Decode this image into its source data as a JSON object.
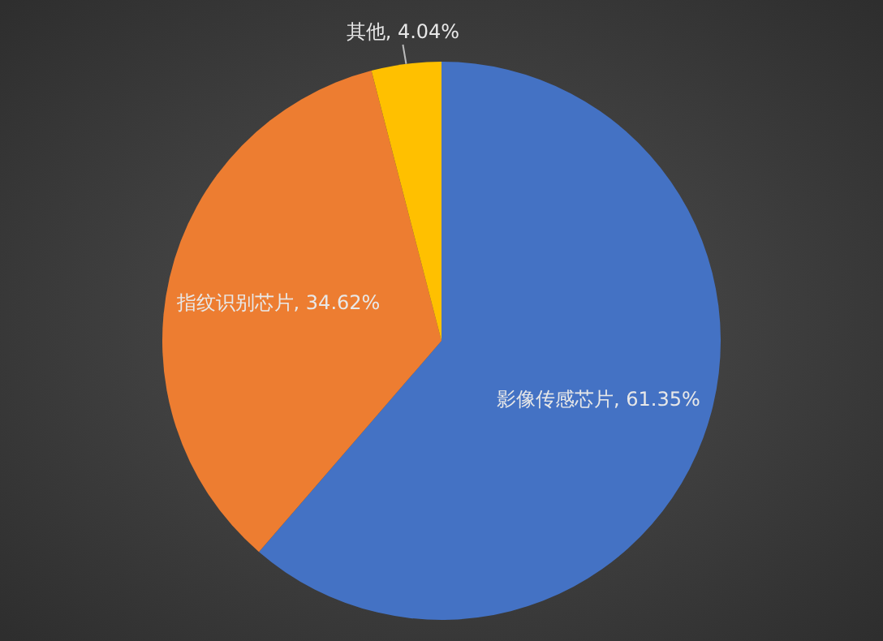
{
  "chart_data": {
    "type": "pie",
    "categories": [
      "影像传感芯片",
      "指纹识别芯片",
      "其他"
    ],
    "values": [
      61.35,
      34.62,
      4.04
    ],
    "colors": [
      "#4472c4",
      "#ed7d31",
      "#ffc000"
    ],
    "value_labels": [
      "61.35%",
      "34.62%",
      "4.04%"
    ]
  }
}
